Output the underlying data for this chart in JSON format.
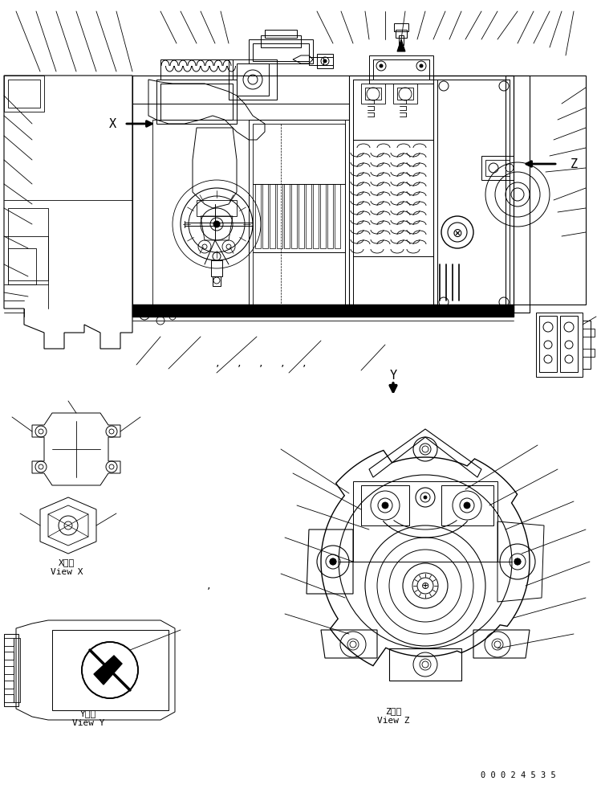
{
  "page_id": "00024535",
  "bg_color": "#ffffff",
  "line_color": "#000000",
  "view_x_label": "X　視",
  "view_x_sub": "View X",
  "view_y_label": "Y　視",
  "view_y_sub": "View Y",
  "view_z_label": "Z　視",
  "view_z_sub": "View Z",
  "page_num": "0 0 0 2 4 5 3 5",
  "dots": ",   ,   ,   ,   ,",
  "label_x": "X",
  "label_y": "Y",
  "label_z": "Z"
}
